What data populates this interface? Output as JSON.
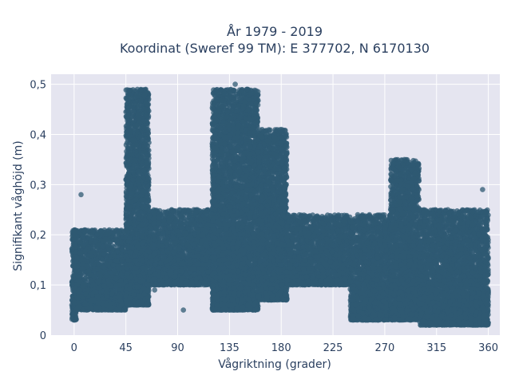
{
  "chart_data": {
    "type": "scatter",
    "title_line1": "År 1979 - 2019",
    "title_line2": "Koordinat (Sweref 99 TM): E 377702, N 6170130",
    "xlabel": "Vågriktning (grader)",
    "ylabel": "Signifikant våghöjd (m)",
    "xlim": [
      -20,
      370
    ],
    "ylim": [
      0,
      0.52
    ],
    "x_ticks": [
      0,
      45,
      90,
      135,
      180,
      225,
      270,
      315,
      360
    ],
    "x_tick_labels": [
      "0",
      "45",
      "90",
      "135",
      "180",
      "225",
      "270",
      "315",
      "360"
    ],
    "y_ticks": [
      0,
      0.1,
      0.2,
      0.3,
      0.4,
      0.5
    ],
    "y_tick_labels": [
      "0",
      "0,1",
      "0,2",
      "0,3",
      "0,4",
      "0,5"
    ],
    "grid": true,
    "legend": "none",
    "marker_color": "#2f5a73",
    "plot_background": "#e5e5f0",
    "clusters": [
      {
        "x_range": [
          -2,
          2
        ],
        "y_range": [
          0.03,
          0.21
        ]
      },
      {
        "x_range": [
          0,
          45
        ],
        "y_range": [
          0.05,
          0.21
        ]
      },
      {
        "x_range": [
          45,
          65
        ],
        "y_range": [
          0.06,
          0.49
        ]
      },
      {
        "x_range": [
          65,
          120
        ],
        "y_range": [
          0.1,
          0.25
        ]
      },
      {
        "x_range": [
          120,
          160
        ],
        "y_range": [
          0.05,
          0.49
        ]
      },
      {
        "x_range": [
          160,
          185
        ],
        "y_range": [
          0.07,
          0.41
        ]
      },
      {
        "x_range": [
          185,
          240
        ],
        "y_range": [
          0.1,
          0.24
        ]
      },
      {
        "x_range": [
          240,
          275
        ],
        "y_range": [
          0.03,
          0.24
        ]
      },
      {
        "x_range": [
          275,
          300
        ],
        "y_range": [
          0.03,
          0.35
        ]
      },
      {
        "x_range": [
          300,
          360
        ],
        "y_range": [
          0.02,
          0.25
        ]
      }
    ],
    "approx_points": [
      {
        "x": 55,
        "y": 0.49
      },
      {
        "x": 140,
        "y": 0.5
      },
      {
        "x": 150,
        "y": 0.49
      },
      {
        "x": 180,
        "y": 0.41
      },
      {
        "x": 287,
        "y": 0.35
      },
      {
        "x": 6,
        "y": 0.28
      },
      {
        "x": 70,
        "y": 0.09
      },
      {
        "x": 95,
        "y": 0.05
      },
      {
        "x": 262,
        "y": 0.03
      },
      {
        "x": 320,
        "y": 0.02
      },
      {
        "x": 355,
        "y": 0.29
      },
      {
        "x": 0,
        "y": 0.03
      }
    ]
  }
}
